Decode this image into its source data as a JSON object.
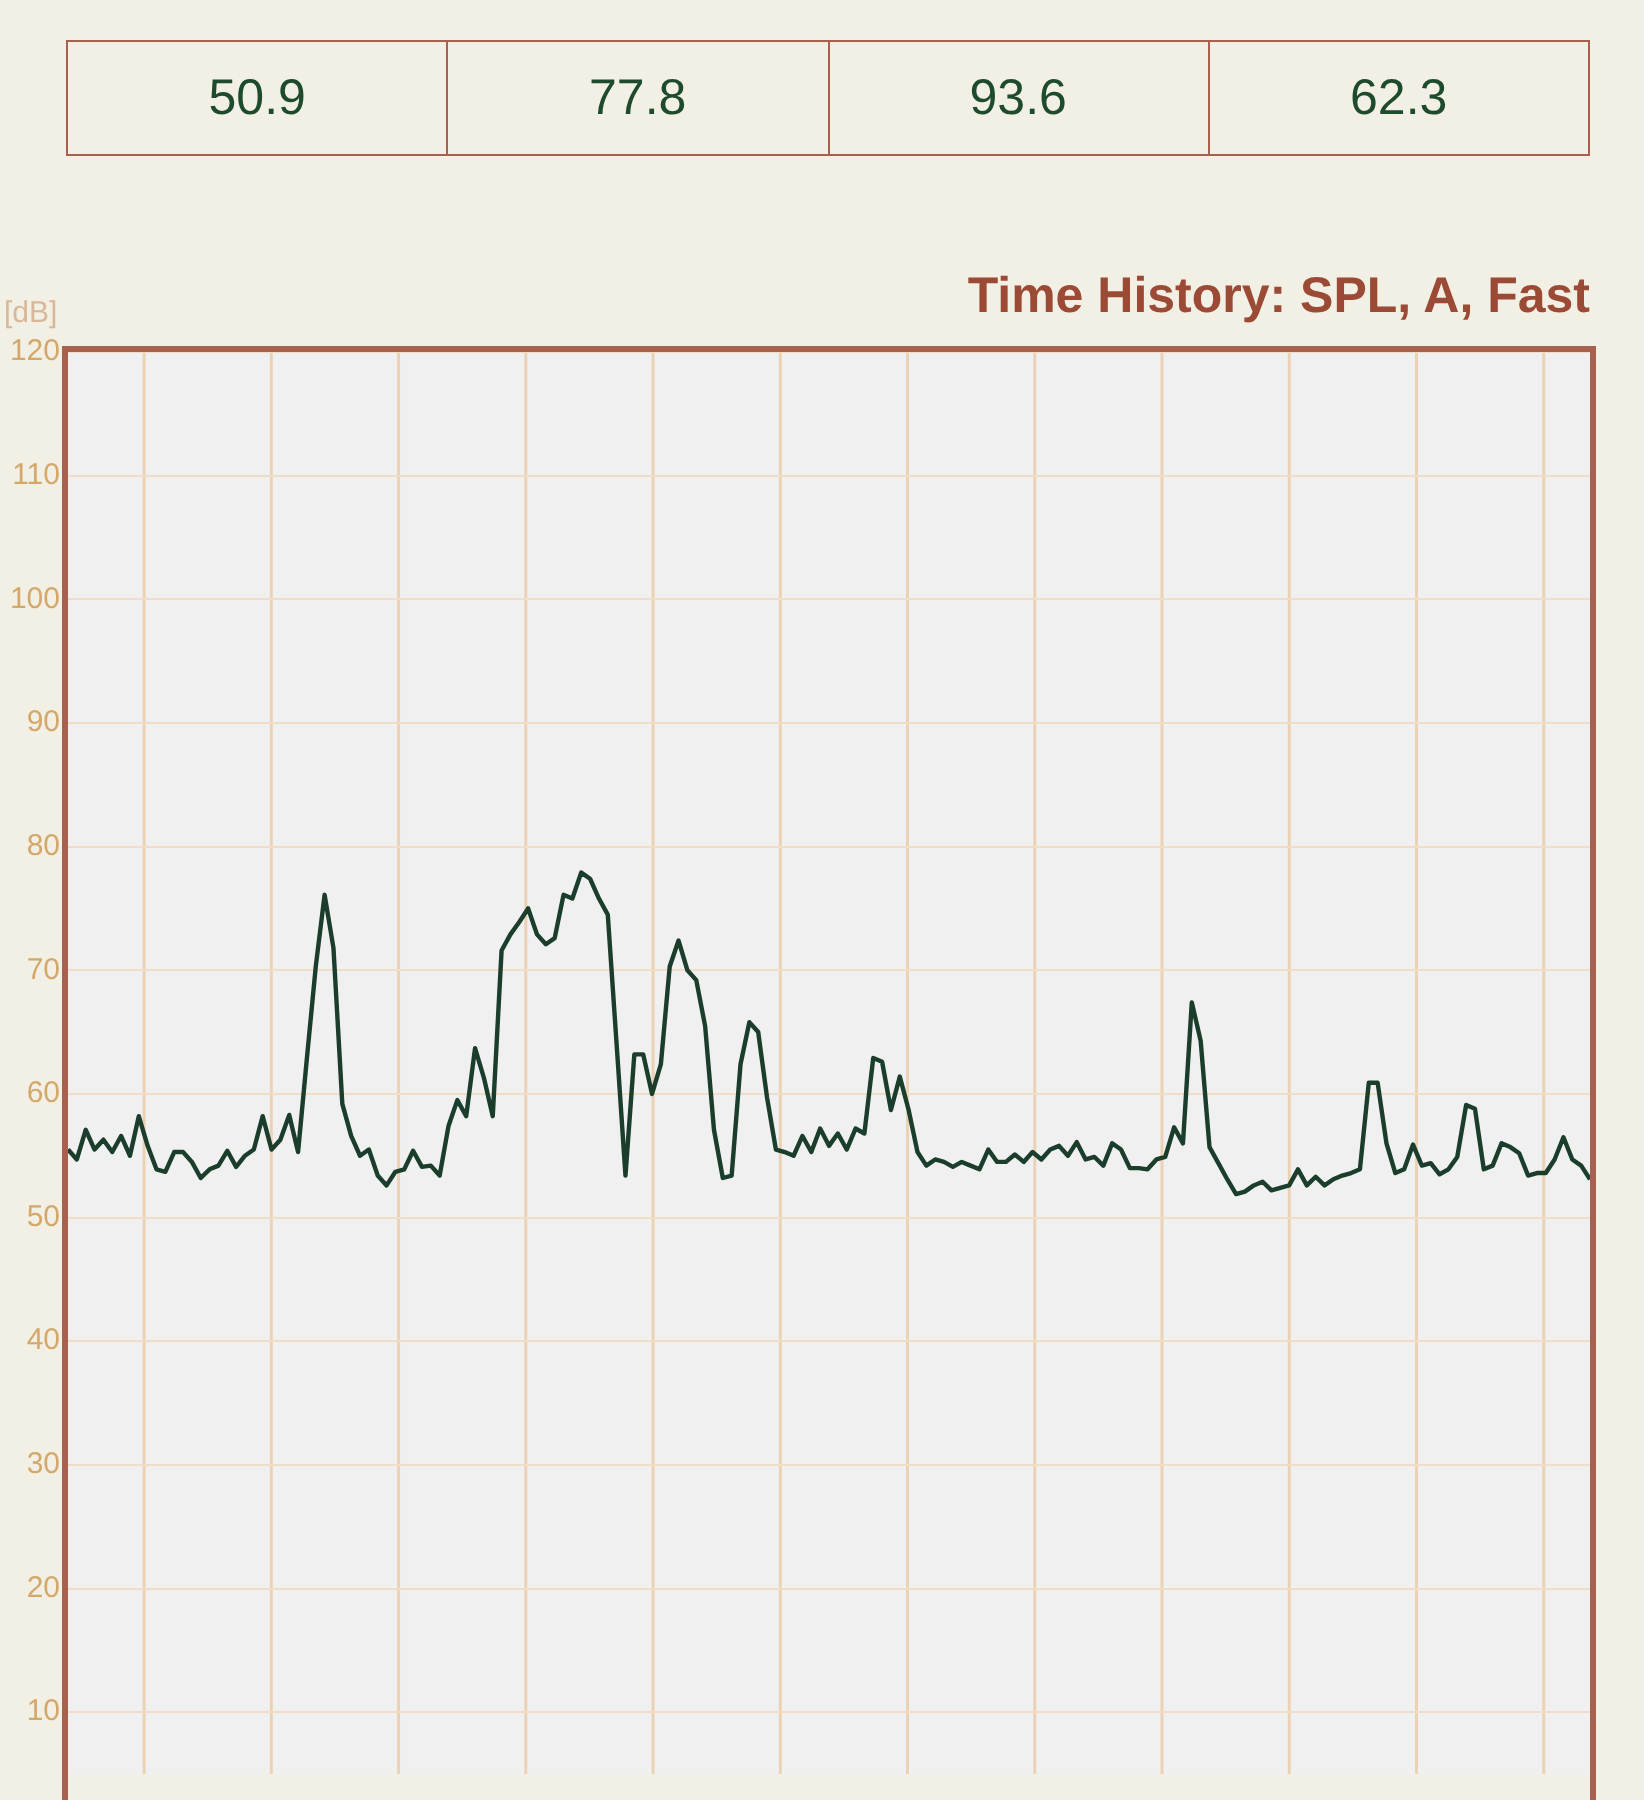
{
  "chart_data": [
    {
      "type": "other",
      "annotations": [
        "50.9",
        "77.8",
        "93.6",
        "62.3"
      ]
    },
    {
      "type": "line",
      "title": "Time History: SPL, A, Fast",
      "ylabel": "[dB]",
      "categories": [
        null,
        null,
        null,
        null,
        null,
        null,
        null,
        null,
        null,
        null,
        null,
        null,
        null,
        null,
        null,
        null,
        null,
        null,
        null,
        null,
        null,
        null,
        null,
        null,
        null,
        null,
        null,
        null,
        null,
        null,
        null,
        null,
        null,
        null,
        null,
        null,
        null,
        null,
        null,
        null,
        null,
        null,
        null,
        null,
        null,
        null,
        null,
        null,
        null,
        null,
        null,
        null,
        null,
        null,
        null,
        null,
        null,
        null,
        null,
        null,
        null,
        null,
        null,
        null,
        null,
        null,
        null,
        null,
        null,
        null,
        null,
        null,
        null,
        null,
        null,
        null,
        null,
        null,
        null,
        null,
        null,
        null,
        null,
        null,
        null,
        null,
        null,
        null,
        null,
        null,
        null,
        null,
        null,
        null,
        null,
        null,
        null,
        null,
        null,
        null,
        null,
        null,
        null,
        null,
        null,
        null,
        null,
        null,
        null,
        null,
        null,
        null,
        null,
        null,
        null,
        null,
        null,
        null,
        null,
        null,
        null,
        null,
        null,
        null,
        null,
        null,
        null,
        null,
        null,
        null,
        null,
        null,
        null,
        null,
        null,
        null,
        null,
        null,
        null,
        null,
        null,
        null,
        null,
        null,
        null,
        null,
        null,
        null,
        null,
        null,
        null,
        null,
        null,
        null,
        null,
        null,
        null,
        null,
        null,
        null,
        null,
        null,
        null,
        null,
        null,
        null,
        null,
        null,
        null,
        null,
        null,
        null,
        null
      ],
      "series": [
        {
          "color": "#1b3d2b",
          "values": [
            55.5,
            54.7,
            57.1,
            55.5,
            56.3,
            55.3,
            56.6,
            55,
            58.2,
            55.8,
            53.9,
            53.7,
            55.3,
            55.3,
            54.5,
            53.2,
            53.9,
            54.2,
            55.4,
            54.1,
            55,
            55.5,
            58.2,
            55.5,
            56.3,
            58.3,
            55.3,
            62.9,
            70.3,
            76.1,
            71.8,
            59.2,
            56.6,
            55,
            55.5,
            53.4,
            52.6,
            53.7,
            53.9,
            55.4,
            54.1,
            54.2,
            53.4,
            57.4,
            59.5,
            58.2,
            63.7,
            61.3,
            58.2,
            71.6,
            72.9,
            73.9,
            75,
            72.9,
            72.1,
            72.6,
            76.1,
            75.8,
            77.9,
            77.4,
            75.8,
            74.5,
            64,
            53.4,
            63.2,
            63.2,
            60,
            62.4,
            70.3,
            72.4,
            70,
            69.2,
            65.5,
            57.1,
            53.2,
            53.4,
            62.4,
            65.8,
            65,
            59.7,
            55.5,
            55.3,
            55,
            56.6,
            55.3,
            57.2,
            55.8,
            56.8,
            55.5,
            57.2,
            56.8,
            62.9,
            62.6,
            58.7,
            61.4,
            58.7,
            55.3,
            54.2,
            54.7,
            54.5,
            54.1,
            54.5,
            54.2,
            53.9,
            55.5,
            54.5,
            54.5,
            55.1,
            54.5,
            55.3,
            54.7,
            55.5,
            55.8,
            55,
            56.1,
            54.7,
            54.9,
            54.2,
            56,
            55.5,
            54,
            54,
            53.9,
            54.7,
            54.9,
            57.3,
            56,
            67.4,
            64.3,
            55.7,
            54.4,
            53.1,
            51.9,
            52.1,
            52.6,
            52.9,
            52.2,
            52.4,
            52.6,
            53.9,
            52.6,
            53.3,
            52.6,
            53.1,
            53.4,
            53.6,
            53.9,
            60.9,
            60.9,
            56,
            53.6,
            53.9,
            55.9,
            54.2,
            54.4,
            53.5,
            53.9,
            54.9,
            59.1,
            58.8,
            53.9,
            54.2,
            56,
            55.7,
            55.2,
            53.4,
            53.6,
            53.6,
            54.7,
            56.5,
            54.7,
            54.2,
            53.1
          ]
        }
      ],
      "ylim": [
        5,
        120
      ],
      "yticks": [
        10,
        20,
        30,
        40,
        50,
        60,
        70,
        80,
        90,
        100,
        110,
        120
      ],
      "grid": true,
      "tick_labels": "y",
      "legend": false,
      "marker": "none",
      "line_style": "solid"
    }
  ]
}
